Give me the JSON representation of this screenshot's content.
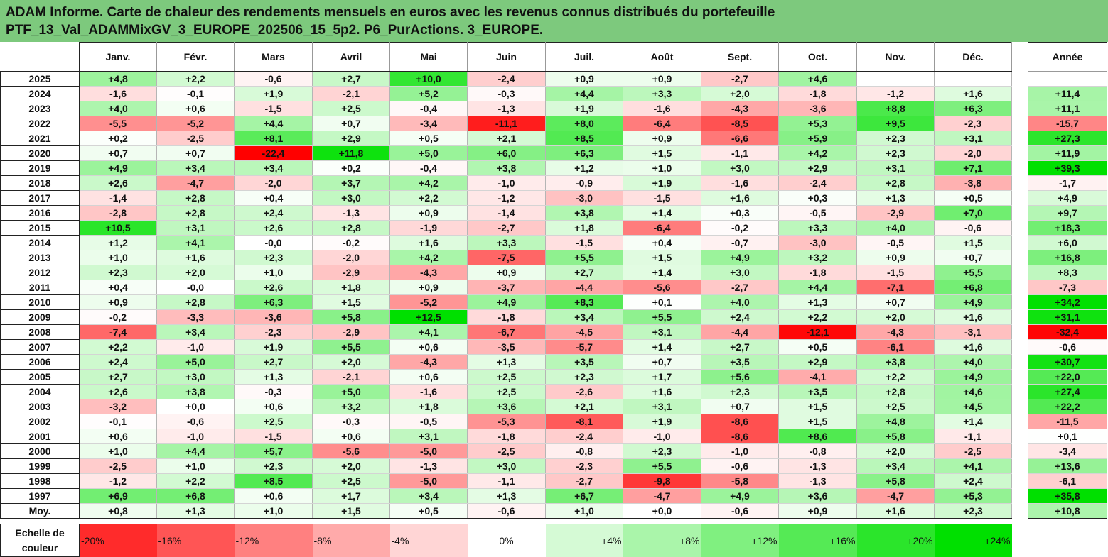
{
  "title": {
    "line1": "ADAM Informe. Carte de chaleur des rendements mensuels en euros avec les revenus connus distribués du portefeuille",
    "line2": "PTF_13_Val_ADAMMixGV_3_EUROPE_202506_15_5p2. P6_PurActions. 3_EUROPE."
  },
  "chart_data": {
    "type": "heatmap",
    "title": "ADAM Informe. Carte de chaleur des rendements mensuels en euros avec les revenus connus distribués du portefeuille PTF_13_Val_ADAMMixGV_3_EUROPE_202506_15_5p2. P6_PurActions. 3_EUROPE.",
    "columns": [
      "Janv.",
      "Févr.",
      "Mars",
      "Avril",
      "Mai",
      "Juin",
      "Juil.",
      "Août",
      "Sept.",
      "Oct.",
      "Nov.",
      "Déc."
    ],
    "annual_label": "Année",
    "rows": [
      {
        "year": "2025",
        "values": [
          "+4,8",
          "+2,2",
          "-0,6",
          "+2,7",
          "+10,0",
          "-2,4",
          "+0,9",
          "+0,9",
          "-2,7",
          "+4,6",
          "",
          ""
        ],
        "annual": ""
      },
      {
        "year": "2024",
        "values": [
          "-1,6",
          "-0,1",
          "+1,9",
          "-2,1",
          "+5,2",
          "-0,3",
          "+4,4",
          "+3,3",
          "+2,0",
          "-1,8",
          "-1,2",
          "+1,6"
        ],
        "annual": "+11,4"
      },
      {
        "year": "2023",
        "values": [
          "+4,0",
          "+0,6",
          "-1,5",
          "+2,5",
          "-0,4",
          "-1,3",
          "+1,9",
          "-1,6",
          "-4,3",
          "-3,6",
          "+8,8",
          "+6,3"
        ],
        "annual": "+11,1"
      },
      {
        "year": "2022",
        "values": [
          "-5,5",
          "-5,2",
          "+4,4",
          "+0,7",
          "-3,4",
          "-11,1",
          "+8,0",
          "-6,4",
          "-8,5",
          "+5,3",
          "+9,5",
          "-2,3"
        ],
        "annual": "-15,7"
      },
      {
        "year": "2021",
        "values": [
          "+0,2",
          "-2,5",
          "+8,1",
          "+2,9",
          "+0,5",
          "+2,1",
          "+8,5",
          "+0,9",
          "-6,6",
          "+5,9",
          "+2,3",
          "+3,1"
        ],
        "annual": "+27,3"
      },
      {
        "year": "2020",
        "values": [
          "+0,7",
          "+0,7",
          "-22,4",
          "+11,8",
          "+5,0",
          "+6,0",
          "+6,3",
          "+1,5",
          "-1,1",
          "+4,2",
          "+2,3",
          "-2,0"
        ],
        "annual": "+11,9"
      },
      {
        "year": "2019",
        "values": [
          "+4,9",
          "+3,4",
          "+3,4",
          "+0,2",
          "-0,4",
          "+3,8",
          "+1,2",
          "+1,0",
          "+3,0",
          "+2,9",
          "+3,1",
          "+7,1"
        ],
        "annual": "+39,3"
      },
      {
        "year": "2018",
        "values": [
          "+2,6",
          "-4,7",
          "-2,0",
          "+3,7",
          "+4,2",
          "-1,0",
          "-0,9",
          "+1,9",
          "-1,6",
          "-2,4",
          "+2,8",
          "-3,8"
        ],
        "annual": "-1,7"
      },
      {
        "year": "2017",
        "values": [
          "-1,4",
          "+2,8",
          "+0,4",
          "+3,0",
          "+2,2",
          "-1,2",
          "-3,0",
          "-1,5",
          "+1,6",
          "+0,3",
          "+1,3",
          "+0,5"
        ],
        "annual": "+4,9"
      },
      {
        "year": "2016",
        "values": [
          "-2,8",
          "+2,8",
          "+2,4",
          "-1,3",
          "+0,9",
          "-1,4",
          "+3,8",
          "+1,4",
          "+0,3",
          "-0,5",
          "-2,9",
          "+7,0"
        ],
        "annual": "+9,7"
      },
      {
        "year": "2015",
        "values": [
          "+10,5",
          "+3,1",
          "+2,6",
          "+2,8",
          "-1,9",
          "-2,7",
          "+1,8",
          "-6,4",
          "-0,2",
          "+3,3",
          "+4,0",
          "-0,6"
        ],
        "annual": "+18,3"
      },
      {
        "year": "2014",
        "values": [
          "+1,2",
          "+4,1",
          "-0,0",
          "-0,2",
          "+1,6",
          "+3,3",
          "-1,5",
          "+0,4",
          "-0,7",
          "-3,0",
          "-0,5",
          "+1,5"
        ],
        "annual": "+6,0"
      },
      {
        "year": "2013",
        "values": [
          "+1,0",
          "+1,6",
          "+2,3",
          "-2,0",
          "+4,2",
          "-7,5",
          "+5,5",
          "+1,5",
          "+4,9",
          "+3,2",
          "+0,9",
          "+0,7"
        ],
        "annual": "+16,8"
      },
      {
        "year": "2012",
        "values": [
          "+2,3",
          "+2,0",
          "+1,0",
          "-2,9",
          "-4,3",
          "+0,9",
          "+2,7",
          "+1,4",
          "+3,0",
          "-1,8",
          "-1,5",
          "+5,5"
        ],
        "annual": "+8,3"
      },
      {
        "year": "2011",
        "values": [
          "+0,4",
          "-0,0",
          "+2,6",
          "+1,8",
          "+0,9",
          "-3,7",
          "-4,4",
          "-5,6",
          "-2,7",
          "+4,4",
          "-7,1",
          "+6,8"
        ],
        "annual": "-7,3"
      },
      {
        "year": "2010",
        "values": [
          "+0,9",
          "+2,8",
          "+6,3",
          "+1,5",
          "-5,2",
          "+4,9",
          "+8,3",
          "+0,1",
          "+4,0",
          "+1,3",
          "+0,7",
          "+4,9"
        ],
        "annual": "+34,2"
      },
      {
        "year": "2009",
        "values": [
          "-0,2",
          "-3,3",
          "-3,6",
          "+5,8",
          "+12,5",
          "-1,8",
          "+3,4",
          "+5,5",
          "+2,4",
          "+2,2",
          "+2,0",
          "+1,6"
        ],
        "annual": "+31,1"
      },
      {
        "year": "2008",
        "values": [
          "-7,4",
          "+3,4",
          "-2,3",
          "-2,9",
          "+4,1",
          "-6,7",
          "-4,5",
          "+3,1",
          "-4,4",
          "-12,1",
          "-4,3",
          "-3,1"
        ],
        "annual": "-32,4"
      },
      {
        "year": "2007",
        "values": [
          "+2,2",
          "-1,0",
          "+1,9",
          "+5,5",
          "+0,6",
          "-3,5",
          "-5,7",
          "+1,4",
          "+2,7",
          "+0,5",
          "-6,1",
          "+1,6"
        ],
        "annual": "-0,6"
      },
      {
        "year": "2006",
        "values": [
          "+2,4",
          "+5,0",
          "+2,7",
          "+2,0",
          "-4,3",
          "+1,3",
          "+3,5",
          "+0,7",
          "+3,5",
          "+2,9",
          "+3,8",
          "+4,0"
        ],
        "annual": "+30,7"
      },
      {
        "year": "2005",
        "values": [
          "+2,7",
          "+3,0",
          "+1,3",
          "-2,1",
          "+0,6",
          "+2,5",
          "+2,3",
          "+1,7",
          "+5,6",
          "-4,1",
          "+2,2",
          "+4,9"
        ],
        "annual": "+22,0"
      },
      {
        "year": "2004",
        "values": [
          "+2,6",
          "+3,8",
          "-0,3",
          "+5,0",
          "-1,6",
          "+2,5",
          "-2,6",
          "+1,6",
          "+2,3",
          "+3,5",
          "+2,8",
          "+4,6"
        ],
        "annual": "+27,4"
      },
      {
        "year": "2003",
        "values": [
          "-3,2",
          "+0,0",
          "+0,6",
          "+3,2",
          "+1,8",
          "+3,6",
          "+2,1",
          "+3,1",
          "+0,7",
          "+1,5",
          "+2,5",
          "+4,5"
        ],
        "annual": "+22,2"
      },
      {
        "year": "2002",
        "values": [
          "-0,1",
          "-0,6",
          "+2,5",
          "-0,3",
          "-0,5",
          "-5,3",
          "-8,1",
          "+1,9",
          "-8,6",
          "+1,5",
          "+4,8",
          "+1,4"
        ],
        "annual": "-11,5"
      },
      {
        "year": "2001",
        "values": [
          "+0,6",
          "-1,0",
          "-1,5",
          "+0,6",
          "+3,1",
          "-1,8",
          "-2,4",
          "-1,0",
          "-8,6",
          "+8,6",
          "+5,8",
          "-1,1"
        ],
        "annual": "+0,1"
      },
      {
        "year": "2000",
        "values": [
          "+1,0",
          "+4,4",
          "+5,7",
          "-5,6",
          "-5,0",
          "-2,5",
          "-0,8",
          "+2,3",
          "-1,0",
          "-0,8",
          "+2,0",
          "-2,5"
        ],
        "annual": "-3,4"
      },
      {
        "year": "1999",
        "values": [
          "-2,5",
          "+1,0",
          "+2,3",
          "+2,0",
          "-1,3",
          "+3,0",
          "-2,3",
          "+5,5",
          "-0,6",
          "-1,3",
          "+3,4",
          "+4,1"
        ],
        "annual": "+13,6"
      },
      {
        "year": "1998",
        "values": [
          "-1,2",
          "+2,2",
          "+8,5",
          "+2,5",
          "-5,0",
          "-1,1",
          "-2,7",
          "-9,8",
          "-5,8",
          "-1,3",
          "+5,8",
          "+2,4"
        ],
        "annual": "-6,1"
      },
      {
        "year": "1997",
        "values": [
          "+6,9",
          "+6,8",
          "+0,6",
          "+1,7",
          "+3,4",
          "+1,3",
          "+6,7",
          "-4,7",
          "+4,9",
          "+3,6",
          "-4,7",
          "+5,3"
        ],
        "annual": "+35,8"
      }
    ],
    "average": {
      "label": "Moy.",
      "values": [
        "+0,8",
        "+1,3",
        "+1,0",
        "+1,5",
        "+0,5",
        "-0,6",
        "+1,0",
        "+0,0",
        "-0,6",
        "+0,9",
        "+1,6",
        "+2,3"
      ],
      "annual": "+10,8"
    },
    "color_scale": {
      "label": "Echelle de couleur",
      "steps": [
        "-20%",
        "-16%",
        "-12%",
        "-8%",
        "-4%",
        "0%",
        "+4%",
        "+8%",
        "+12%",
        "+16%",
        "+20%",
        "+24%"
      ]
    },
    "colors": {
      "negative": "#ff0000",
      "positive": "#00e000",
      "neutral": "#ffffff",
      "header_bg": "#7dc97d"
    }
  }
}
